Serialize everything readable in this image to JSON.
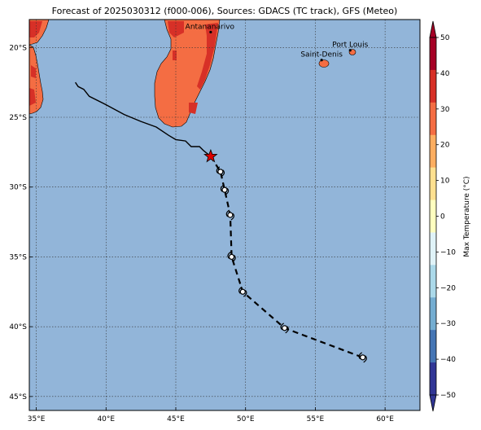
{
  "title": "Forecast of 2025030312 (f000-006), Sources: GDACS (TC track), GFS (Meteo)",
  "map": {
    "lon_range": [
      34.5,
      62.5
    ],
    "lat_range": [
      -46,
      -18
    ],
    "lon_ticks": [
      35,
      40,
      45,
      50,
      55,
      60
    ],
    "lon_tick_labels": [
      "35°E",
      "40°E",
      "45°E",
      "50°E",
      "55°E",
      "60°E"
    ],
    "lat_ticks": [
      -20,
      -25,
      -30,
      -35,
      -40,
      -45
    ],
    "lat_tick_labels": [
      "20°S",
      "25°S",
      "30°S",
      "35°S",
      "40°S",
      "45°S"
    ],
    "grid": true,
    "ocean_color": "#92b5d9"
  },
  "places": [
    {
      "name": "Antananarivo",
      "lon": 47.5,
      "lat": -18.9
    },
    {
      "name": "Port Louis",
      "lon": 57.5,
      "lat": -20.2
    },
    {
      "name": "Saint-Denis",
      "lon": 55.45,
      "lat": -20.9
    }
  ],
  "track": {
    "past": [
      {
        "lon": 37.8,
        "lat": -22.5
      },
      {
        "lon": 38.0,
        "lat": -22.8
      },
      {
        "lon": 38.4,
        "lat": -23.0
      },
      {
        "lon": 38.8,
        "lat": -23.5
      },
      {
        "lon": 40.0,
        "lat": -24.1
      },
      {
        "lon": 41.3,
        "lat": -24.8
      },
      {
        "lon": 42.5,
        "lat": -25.3
      },
      {
        "lon": 43.6,
        "lat": -25.7
      },
      {
        "lon": 44.5,
        "lat": -26.3
      },
      {
        "lon": 45.0,
        "lat": -26.6
      },
      {
        "lon": 45.7,
        "lat": -26.7
      },
      {
        "lon": 46.1,
        "lat": -27.1
      },
      {
        "lon": 46.7,
        "lat": -27.1
      },
      {
        "lon": 47.0,
        "lat": -27.4
      },
      {
        "lon": 47.5,
        "lat": -27.8
      }
    ],
    "current": {
      "lon": 47.5,
      "lat": -27.8
    },
    "forecast": [
      {
        "lon": 47.5,
        "lat": -27.8
      },
      {
        "lon": 48.2,
        "lat": -28.9
      },
      {
        "lon": 48.5,
        "lat": -30.2
      },
      {
        "lon": 48.9,
        "lat": -32.0
      },
      {
        "lon": 49.0,
        "lat": -35.0
      },
      {
        "lon": 49.8,
        "lat": -37.5
      },
      {
        "lon": 52.8,
        "lat": -40.1
      },
      {
        "lon": 58.4,
        "lat": -42.2
      }
    ],
    "forecast_points": [
      {
        "lon": 48.2,
        "lat": -28.9
      },
      {
        "lon": 48.5,
        "lat": -30.2
      },
      {
        "lon": 48.9,
        "lat": -32.0
      },
      {
        "lon": 49.0,
        "lat": -35.0
      },
      {
        "lon": 49.8,
        "lat": -37.5
      },
      {
        "lon": 52.8,
        "lat": -40.1
      },
      {
        "lon": 58.4,
        "lat": -42.2
      }
    ],
    "colors": {
      "star": "#dd0000",
      "track": "#000000"
    }
  },
  "colorbar": {
    "label": "Max Temperature (°C)",
    "ticks": [
      50,
      40,
      30,
      20,
      10,
      0,
      -10,
      -20,
      -30,
      -40,
      -50
    ],
    "tick_labels": [
      "50",
      "40",
      "30",
      "20",
      "10",
      "0",
      "−10",
      "−20",
      "−30",
      "−40",
      "−50"
    ],
    "colors_top_to_bottom": [
      "#a50026",
      "#d73027",
      "#f46d43",
      "#fdae61",
      "#fee090",
      "#ffffbf",
      "#e0f3f8",
      "#abd9e9",
      "#74add1",
      "#4575b4",
      "#313695"
    ]
  }
}
